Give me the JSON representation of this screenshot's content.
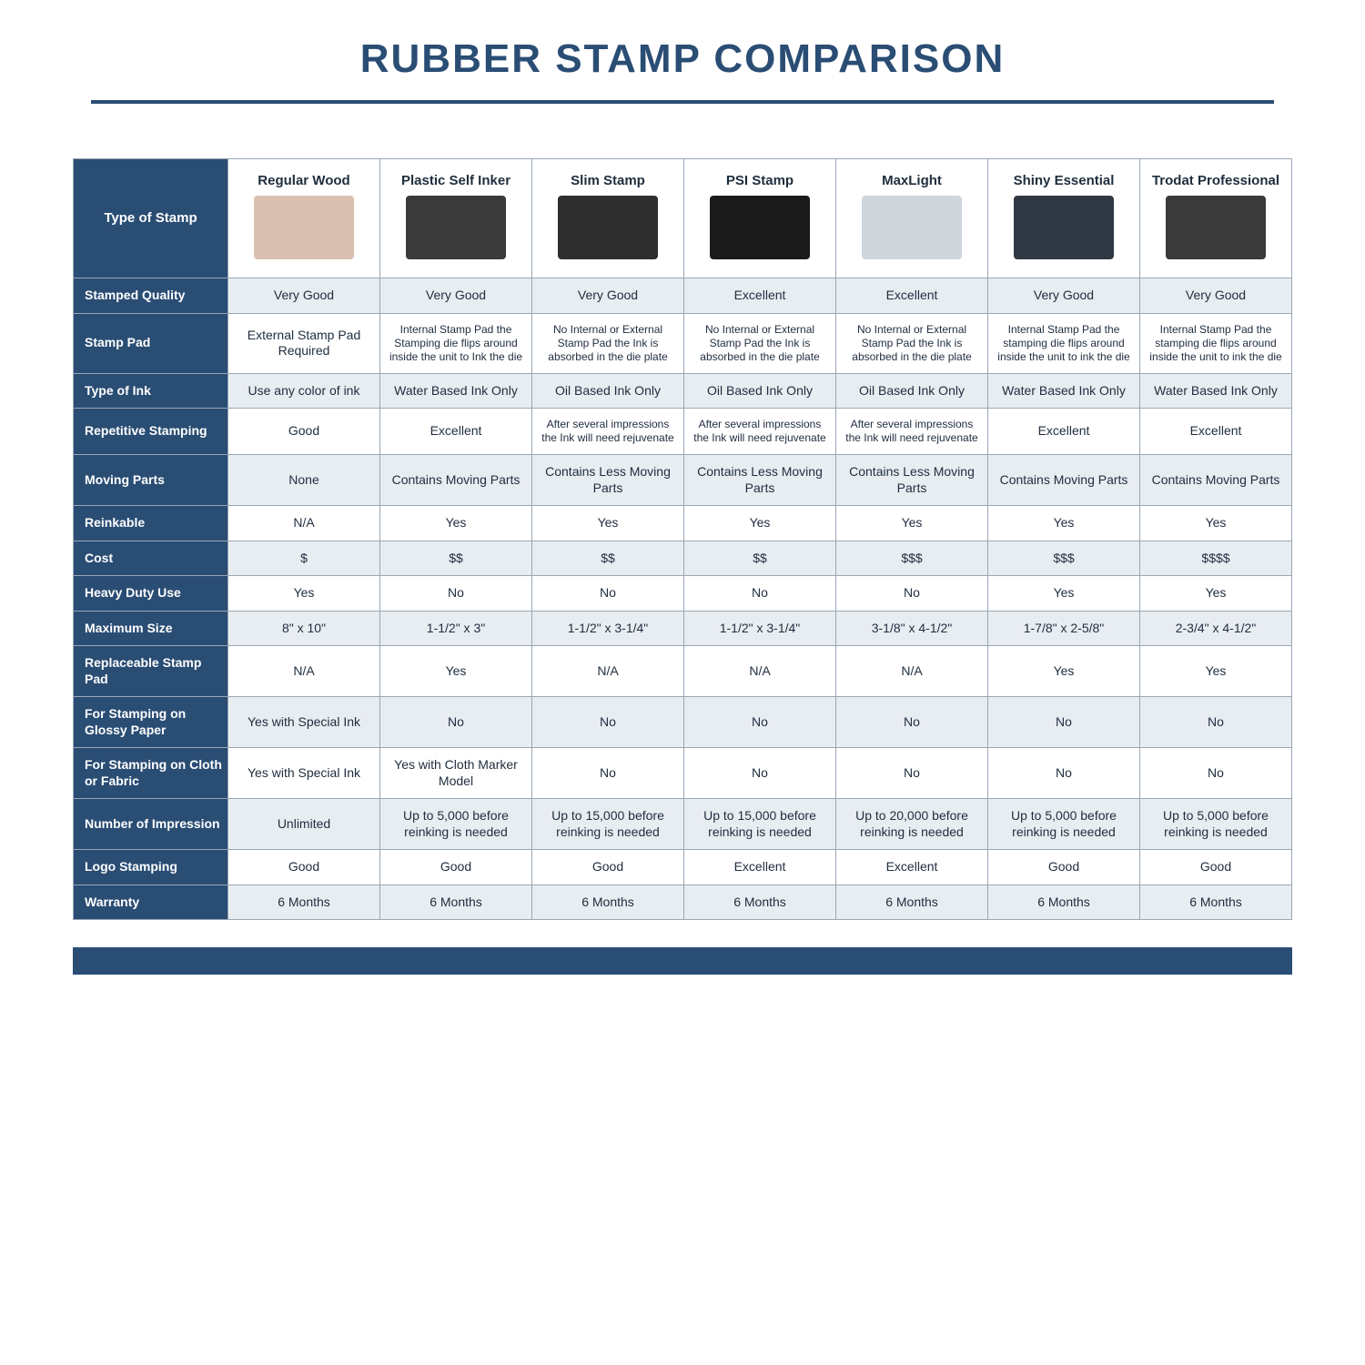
{
  "colors": {
    "brand_navy": "#2a4d74",
    "header_text": "#ffffff",
    "rowhead_text": "#ffffff",
    "cell_text": "#1f2d3d",
    "border": "#9aa7b3",
    "stripe_bg": "#e8edf2",
    "plain_bg": "#ffffff",
    "title_color": "#2a4d74"
  },
  "title": "RUBBER STAMP COMPARISON",
  "columns": [
    "Regular Wood",
    "Plastic Self Inker",
    "Slim Stamp",
    "PSI Stamp",
    "MaxLight",
    "Shiny Essential",
    "Trodat Professional"
  ],
  "type_of_stamp_label": "Type of Stamp",
  "image_placeholders": [
    "#d9c0b0",
    "#3a3a3a",
    "#2e2e2e",
    "#1a1a1a",
    "#cfd6dc",
    "#303844",
    "#3a3a3a"
  ],
  "rows": [
    {
      "label": "Stamped Quality",
      "cells": [
        "Very Good",
        "Very Good",
        "Very Good",
        "Excellent",
        "Excellent",
        "Very Good",
        "Very Good"
      ]
    },
    {
      "label": "Stamp Pad",
      "cells": [
        "External Stamp Pad Required",
        "Internal Stamp Pad the Stamping die flips around inside the unit to Ink the die",
        "No Internal or External Stamp Pad the Ink is absorbed in the die plate",
        "No Internal or External Stamp Pad the Ink is absorbed in the die plate",
        "No Internal or External Stamp Pad the Ink is absorbed in the die plate",
        "Internal Stamp Pad the stamping die flips around inside the unit to ink the die",
        "Internal Stamp Pad the stamping die flips around inside the unit to ink the die"
      ]
    },
    {
      "label": "Type of Ink",
      "cells": [
        "Use any color of ink",
        "Water Based Ink Only",
        "Oil Based Ink Only",
        "Oil Based Ink Only",
        "Oil Based Ink Only",
        "Water Based Ink Only",
        "Water Based Ink Only"
      ]
    },
    {
      "label": "Repetitive Stamping",
      "cells": [
        "Good",
        "Excellent",
        "After several impressions the Ink will need rejuvenate",
        "After several impressions the Ink will need rejuvenate",
        "After several impressions the Ink will need rejuvenate",
        "Excellent",
        "Excellent"
      ]
    },
    {
      "label": "Moving Parts",
      "cells": [
        "None",
        "Contains Moving Parts",
        "Contains Less Moving Parts",
        "Contains Less Moving Parts",
        "Contains Less Moving Parts",
        "Contains Moving Parts",
        "Contains Moving Parts"
      ]
    },
    {
      "label": "Reinkable",
      "cells": [
        "N/A",
        "Yes",
        "Yes",
        "Yes",
        "Yes",
        "Yes",
        "Yes"
      ]
    },
    {
      "label": "Cost",
      "cells": [
        "$",
        "$$",
        "$$",
        "$$",
        "$$$",
        "$$$",
        "$$$$"
      ]
    },
    {
      "label": "Heavy Duty Use",
      "cells": [
        "Yes",
        "No",
        "No",
        "No",
        "No",
        "Yes",
        "Yes"
      ]
    },
    {
      "label": "Maximum Size",
      "cells": [
        "8\" x 10\"",
        "1-1/2\" x 3\"",
        "1-1/2\" x 3-1/4\"",
        "1-1/2\" x 3-1/4\"",
        "3-1/8\" x 4-1/2\"",
        "1-7/8\" x 2-5/8\"",
        "2-3/4\" x 4-1/2\""
      ]
    },
    {
      "label": "Replaceable Stamp Pad",
      "cells": [
        "N/A",
        "Yes",
        "N/A",
        "N/A",
        "N/A",
        "Yes",
        "Yes"
      ]
    },
    {
      "label": "For Stamping on Glossy Paper",
      "cells": [
        "Yes with Special Ink",
        "No",
        "No",
        "No",
        "No",
        "No",
        "No"
      ]
    },
    {
      "label": "For Stamping on Cloth or Fabric",
      "cells": [
        "Yes with Special Ink",
        "Yes with Cloth Marker Model",
        "No",
        "No",
        "No",
        "No",
        "No"
      ]
    },
    {
      "label": "Number of Impression",
      "cells": [
        "Unlimited",
        "Up to 5,000 before reinking is needed",
        "Up to 15,000 before reinking is needed",
        "Up to 15,000 before reinking is needed",
        "Up to 20,000 before reinking is needed",
        "Up to 5,000 before reinking is needed",
        "Up to 5,000 before reinking is needed"
      ]
    },
    {
      "label": "Logo Stamping",
      "cells": [
        "Good",
        "Good",
        "Good",
        "Excellent",
        "Excellent",
        "Good",
        "Good"
      ]
    },
    {
      "label": "Warranty",
      "cells": [
        "6 Months",
        "6 Months",
        "6 Months",
        "6 Months",
        "6 Months",
        "6 Months",
        "6 Months"
      ]
    }
  ]
}
